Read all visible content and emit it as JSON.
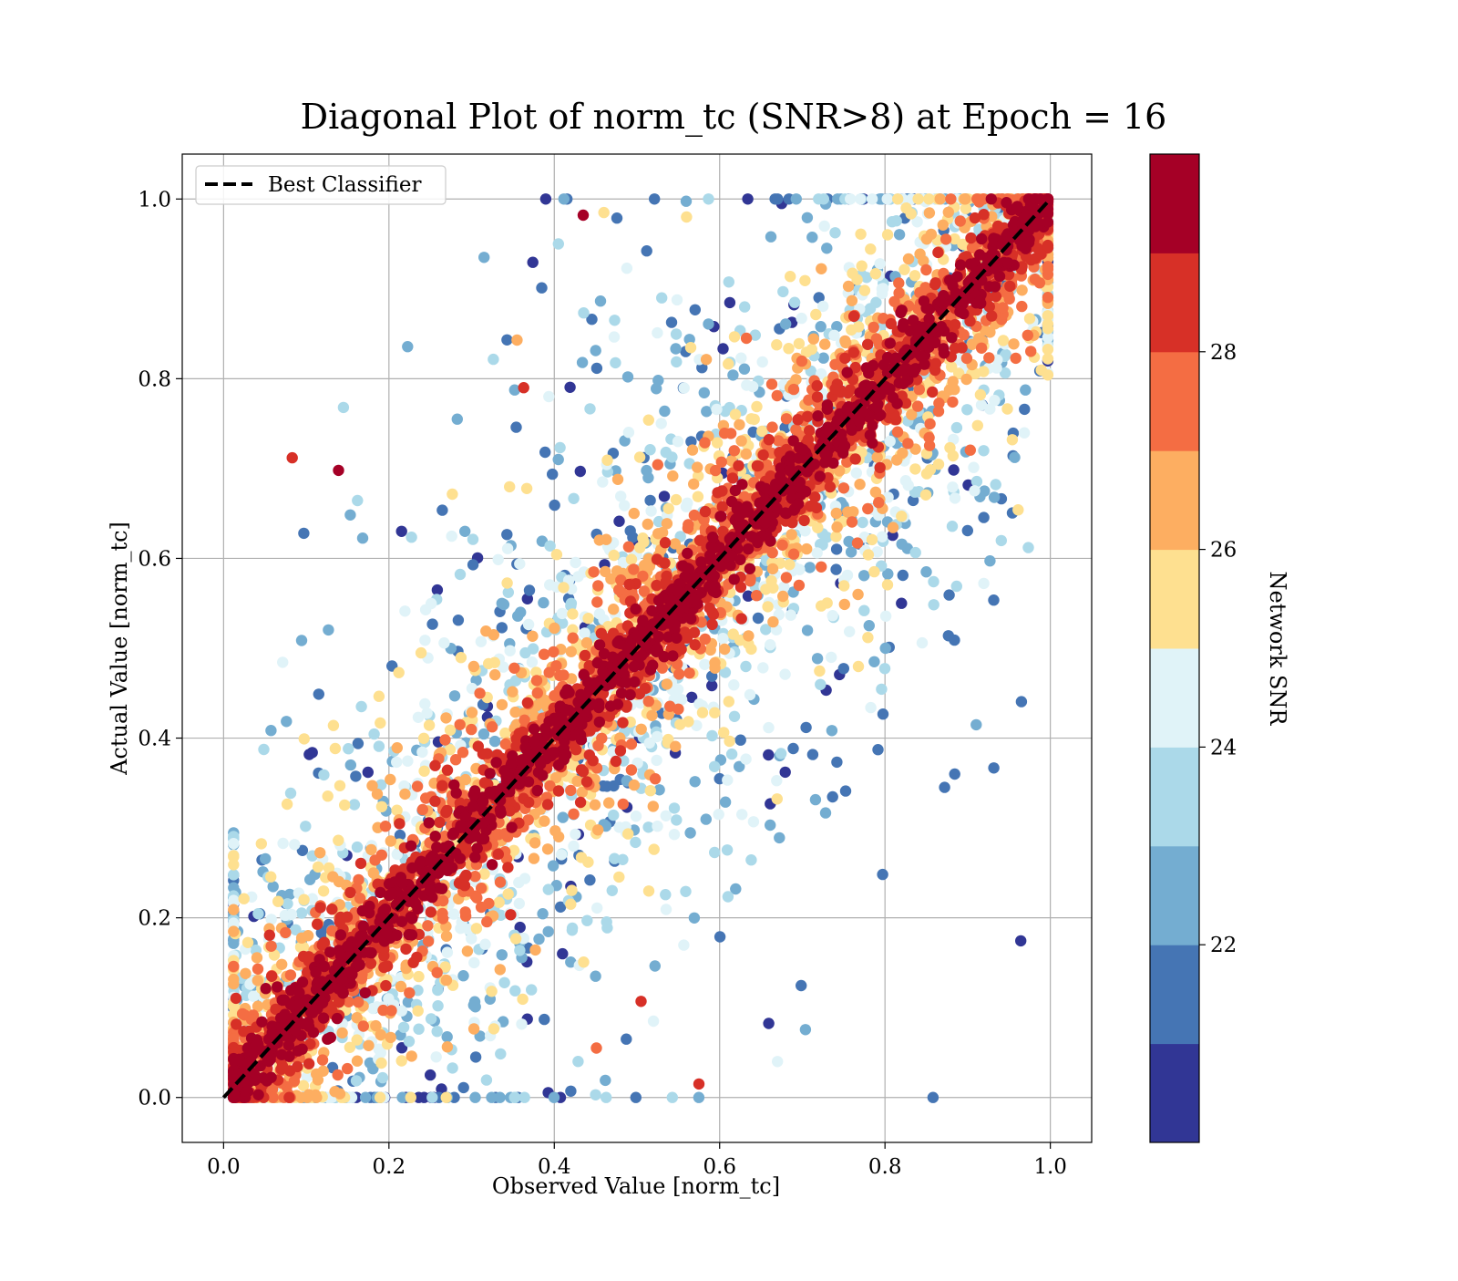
{
  "chart_data": {
    "type": "scatter",
    "title": "Diagonal Plot of norm_tc (SNR>8) at Epoch = 16",
    "xlabel": "Observed Value [norm_tc]",
    "ylabel": "Actual Value [norm_tc]",
    "xlim": [
      -0.05,
      1.05
    ],
    "ylim": [
      -0.05,
      1.05
    ],
    "xticks": [
      "0.0",
      "0.2",
      "0.4",
      "0.6",
      "0.8",
      "1.0"
    ],
    "yticks": [
      "0.0",
      "0.2",
      "0.4",
      "0.6",
      "0.8",
      "1.0"
    ],
    "grid": true,
    "legend": {
      "position": "top-left",
      "entries": [
        {
          "label": "Best Classifier",
          "style": "black dashed line",
          "x": [
            0,
            1
          ],
          "y": [
            0,
            1
          ]
        }
      ]
    },
    "colorbar": {
      "label": "Network SNR",
      "range": [
        20,
        30
      ],
      "ticks": [
        "22",
        "24",
        "26",
        "28"
      ],
      "bins": 10,
      "colormap": [
        "#313695",
        "#4575b4",
        "#74add1",
        "#abd9e9",
        "#e0f3f8",
        "#fee090",
        "#fdae61",
        "#f46d43",
        "#d73027",
        "#a50026"
      ]
    },
    "series": [
      {
        "description_points": [
          [
            0.575,
            0.015,
            28.5
          ],
          [
            0.67,
            0.04,
            24.5
          ],
          [
            0.52,
            0.085,
            24.8
          ],
          [
            0.505,
            0.107,
            28.6
          ],
          [
            0.083,
            0.712,
            28.7
          ],
          [
            0.139,
            0.698,
            29.5
          ],
          [
            0.145,
            0.768,
            23.5
          ],
          [
            0.097,
            0.628,
            21.0
          ],
          [
            0.315,
            0.935,
            22.0
          ],
          [
            0.435,
            0.982,
            29.5
          ],
          [
            0.46,
            0.985,
            25.5
          ],
          [
            0.56,
            0.98,
            25.5
          ],
          [
            0.363,
            0.79,
            28.6
          ],
          [
            0.355,
            0.843,
            26.5
          ],
          [
            0.405,
            0.95,
            23.0
          ],
          [
            0.473,
            0.865,
            23.0
          ],
          [
            0.787,
            0.485,
            22.0
          ],
          [
            0.82,
            0.55,
            20.5
          ],
          [
            0.85,
            0.585,
            22.5
          ],
          [
            0.735,
            0.49,
            24.5
          ],
          [
            0.627,
            0.315,
            24.5
          ],
          [
            0.473,
            0.263,
            21.0
          ],
          [
            0.42,
            0.235,
            20.5
          ],
          [
            0.41,
            0.16,
            20.5
          ],
          [
            0.45,
            0.135,
            22.5
          ],
          [
            0.451,
            0.055,
            27.6
          ],
          [
            0.45,
            0.003,
            23.0
          ],
          [
            0.42,
            0.007,
            21.5
          ],
          [
            0.25,
            0.025,
            20.5
          ],
          [
            0.305,
            0.045,
            21.5
          ],
          [
            0.53,
            0.89,
            23.5
          ],
          [
            0.675,
            0.995,
            20.5
          ]
        ]
      }
    ]
  }
}
